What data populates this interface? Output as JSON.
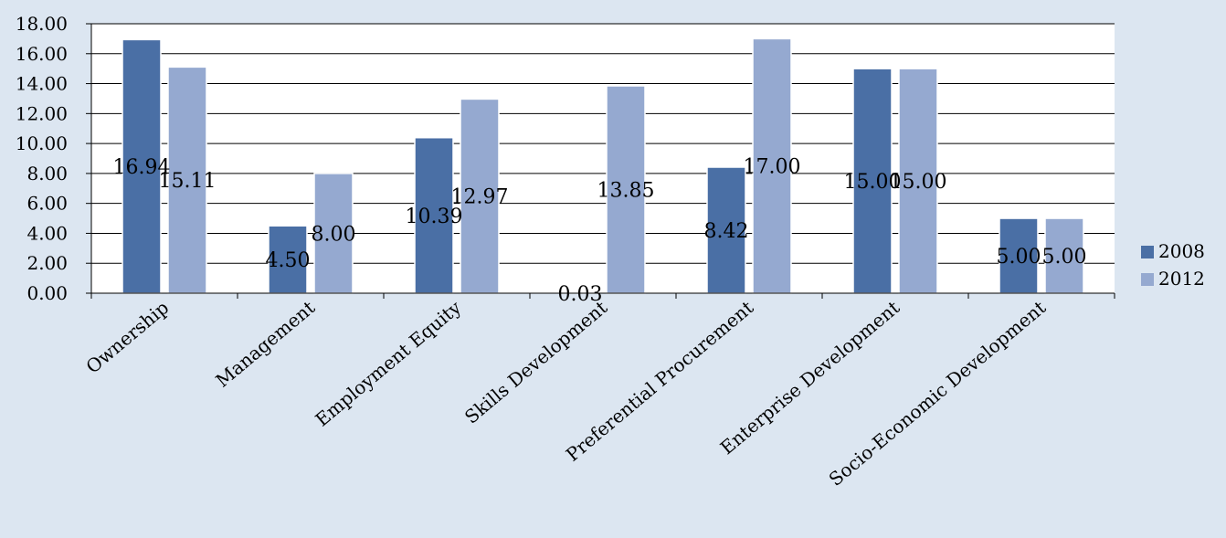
{
  "chart_data": {
    "type": "bar",
    "categories": [
      "Ownership",
      "Management",
      "Employment Equity",
      "Skills Development",
      "Preferential Procurement",
      "Enterprise Development",
      "Socio-Economic Development"
    ],
    "series": [
      {
        "name": "2008",
        "values": [
          16.94,
          4.5,
          10.39,
          0.03,
          8.42,
          15.0,
          5.0
        ],
        "labels": [
          "16.94",
          "4.50",
          "10.39",
          "0.03",
          "8.42",
          "15.00",
          "5.00"
        ]
      },
      {
        "name": "2012",
        "values": [
          15.11,
          8.0,
          12.97,
          13.85,
          17.0,
          15.0,
          5.0
        ],
        "labels": [
          "15.11",
          "8.00",
          "12.97",
          "13.85",
          "17.00",
          "15.00",
          "5.00"
        ]
      }
    ],
    "ylim": [
      0,
      18
    ],
    "yticks": [
      "0.00",
      "2.00",
      "4.00",
      "6.00",
      "8.00",
      "10.00",
      "12.00",
      "14.00",
      "16.00",
      "18.00"
    ],
    "title": "",
    "xlabel": "",
    "ylabel": "",
    "grid": true,
    "legend": "right",
    "colors": {
      "2008": "#4a6fa5",
      "2012": "#95a9d0",
      "background": "#dce6f1",
      "plot": "#ffffff",
      "grid": "#000000"
    }
  }
}
